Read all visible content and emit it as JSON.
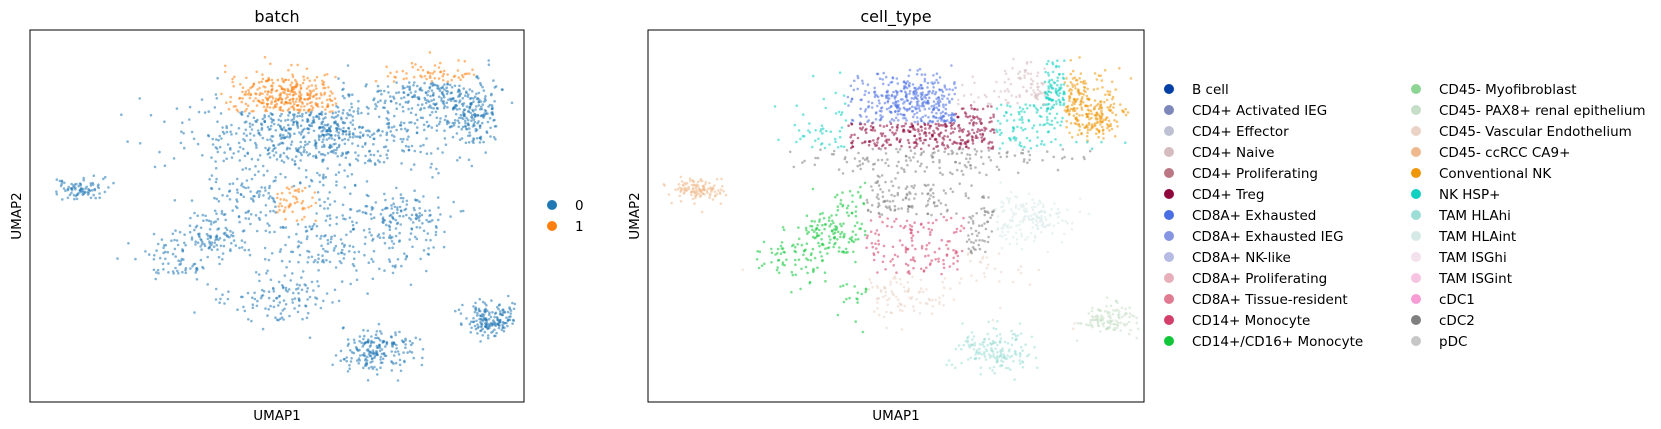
{
  "chart_data": [
    {
      "type": "scatter",
      "title": "batch",
      "xlabel": "UMAP1",
      "ylabel": "UMAP2",
      "grid": false,
      "legend_position": "right",
      "legend": [
        {
          "label": "0",
          "color": "#1f77b4"
        },
        {
          "label": "1",
          "color": "#ff7f0e"
        }
      ]
    },
    {
      "type": "scatter",
      "title": "cell_type",
      "xlabel": "UMAP1",
      "ylabel": "UMAP2",
      "grid": false,
      "legend_position": "right",
      "legend": [
        {
          "label": "B cell",
          "color": "#023fa5"
        },
        {
          "label": "CD4+ Activated IEG",
          "color": "#7d87b9"
        },
        {
          "label": "CD4+ Effector",
          "color": "#bec1d4"
        },
        {
          "label": "CD4+ Naive",
          "color": "#d6bcc0"
        },
        {
          "label": "CD4+ Proliferating",
          "color": "#bb7784"
        },
        {
          "label": "CD4+ Treg",
          "color": "#8e063b"
        },
        {
          "label": "CD8A+ Exhausted",
          "color": "#4a6fe3"
        },
        {
          "label": "CD8A+ Exhausted IEG",
          "color": "#8595e1"
        },
        {
          "label": "CD8A+ NK-like",
          "color": "#b5bbe3"
        },
        {
          "label": "CD8A+ Proliferating",
          "color": "#e6afb9"
        },
        {
          "label": "CD8A+ Tissue-resident",
          "color": "#e07b91"
        },
        {
          "label": "CD14+ Monocyte",
          "color": "#d33f6a"
        },
        {
          "label": "CD14+/CD16+ Monocyte",
          "color": "#11c638"
        },
        {
          "label": "CD45- Myofibroblast",
          "color": "#8dd593"
        },
        {
          "label": "CD45- PAX8+ renal epithelium",
          "color": "#c6dec7"
        },
        {
          "label": "CD45- Vascular Endothelium",
          "color": "#ead3c6"
        },
        {
          "label": "CD45- ccRCC CA9+",
          "color": "#f0b98d"
        },
        {
          "label": "Conventional NK",
          "color": "#ef9708"
        },
        {
          "label": "NK HSP+",
          "color": "#0fcfc0"
        },
        {
          "label": "TAM HLAhi",
          "color": "#9cded6"
        },
        {
          "label": "TAM HLAint",
          "color": "#d5eae7"
        },
        {
          "label": "TAM ISGhi",
          "color": "#f3e1eb"
        },
        {
          "label": "TAM ISGint",
          "color": "#f6c4e1"
        },
        {
          "label": "cDC1",
          "color": "#f79cd4"
        },
        {
          "label": "cDC2",
          "color": "#7f7f7f"
        },
        {
          "label": "pDC",
          "color": "#c7c7c7"
        }
      ]
    }
  ]
}
